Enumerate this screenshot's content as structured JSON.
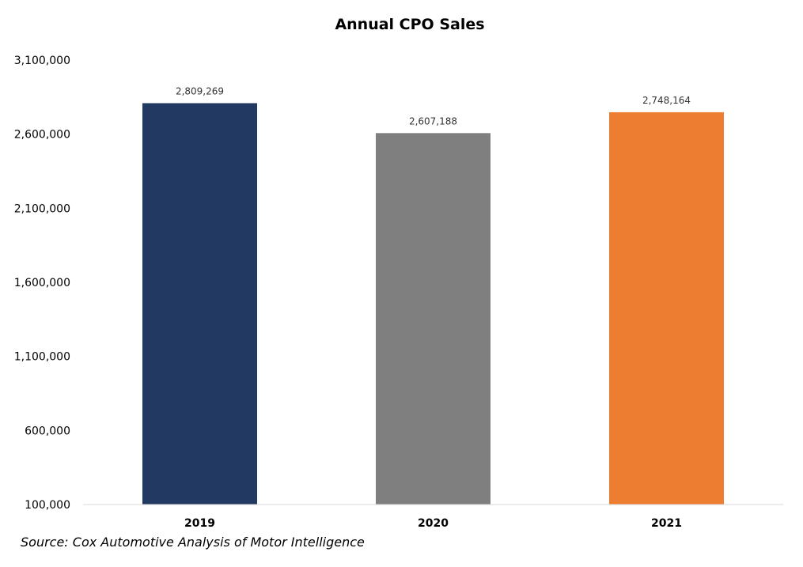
{
  "chart_data": {
    "type": "bar",
    "title": "Annual CPO Sales",
    "categories": [
      "2019",
      "2020",
      "2021"
    ],
    "values": [
      2809269,
      2607188,
      2748164
    ],
    "data_labels": [
      "2,809,269",
      "2,607,188",
      "2,748,164"
    ],
    "bar_colors": [
      "#223962",
      "#7f7f7f",
      "#ed7d31"
    ],
    "ylim": [
      100000,
      3100000
    ],
    "yticks": [
      100000,
      600000,
      1100000,
      1600000,
      2100000,
      2600000,
      3100000
    ],
    "ytick_labels": [
      "100,000",
      "600,000",
      "1,100,000",
      "1,600,000",
      "2,100,000",
      "2,600,000",
      "3,100,000"
    ],
    "xlabel": "",
    "ylabel": "",
    "grid": false,
    "legend": "none"
  },
  "source": "Source: Cox Automotive Analysis of Motor Intelligence"
}
